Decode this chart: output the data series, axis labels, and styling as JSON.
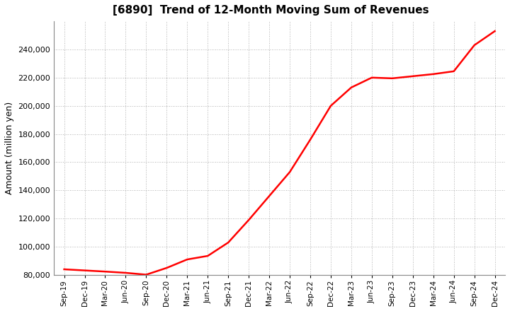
{
  "title": "[6890]  Trend of 12-Month Moving Sum of Revenues",
  "ylabel": "Amount (million yen)",
  "line_color": "#FF0000",
  "line_width": 1.8,
  "background_color": "#FFFFFF",
  "plot_background_color": "#FFFFFF",
  "grid_color": "#999999",
  "ylim": [
    80000,
    260000
  ],
  "yticks": [
    80000,
    100000,
    120000,
    140000,
    160000,
    180000,
    200000,
    220000,
    240000
  ],
  "x_labels": [
    "Sep-19",
    "Dec-19",
    "Mar-20",
    "Jun-20",
    "Sep-20",
    "Dec-20",
    "Mar-21",
    "Jun-21",
    "Sep-21",
    "Dec-21",
    "Mar-22",
    "Jun-22",
    "Sep-22",
    "Dec-22",
    "Mar-23",
    "Jun-23",
    "Sep-23",
    "Dec-23",
    "Mar-24",
    "Jun-24",
    "Sep-24",
    "Dec-24"
  ],
  "data_points": [
    84000,
    83200,
    82400,
    81500,
    80200,
    85000,
    91000,
    93500,
    103000,
    119000,
    136000,
    153000,
    176000,
    200000,
    213000,
    220000,
    219500,
    221000,
    222500,
    224500,
    243000,
    253000
  ]
}
